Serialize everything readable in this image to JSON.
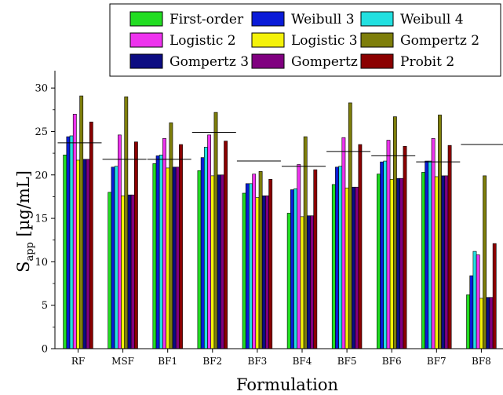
{
  "chart_data": {
    "type": "bar",
    "xlabel": "Formulation",
    "ylabel_main": "S",
    "ylabel_sub": "app",
    "ylabel_rest": " [µg/mL]",
    "ylim": [
      0,
      32
    ],
    "yticks": [
      0,
      5,
      10,
      15,
      20,
      25,
      30
    ],
    "legend_position": "top-right",
    "categories": [
      "RF",
      "MSF",
      "BF1",
      "BF2",
      "BF3",
      "BF4",
      "BF5",
      "BF6",
      "BF7",
      "BF8"
    ],
    "series": [
      {
        "name": "First-order",
        "color": "#22dd22",
        "values": [
          22.3,
          18.0,
          21.3,
          20.5,
          17.9,
          15.6,
          18.9,
          20.1,
          20.3,
          6.2
        ]
      },
      {
        "name": "Weibull 3",
        "color": "#0a1bd8",
        "values": [
          24.4,
          20.9,
          22.2,
          22.0,
          19.0,
          18.3,
          20.9,
          21.5,
          21.6,
          8.4
        ]
      },
      {
        "name": "Weibull 4",
        "color": "#22e0e0",
        "values": [
          24.5,
          21.0,
          22.3,
          23.2,
          19.0,
          18.4,
          21.0,
          21.6,
          21.6,
          11.2
        ]
      },
      {
        "name": "Logistic 2",
        "color": "#ee33ee",
        "values": [
          27.0,
          24.6,
          24.2,
          24.6,
          20.1,
          21.2,
          24.3,
          24.0,
          24.2,
          10.8
        ]
      },
      {
        "name": "Logistic 3",
        "color": "#f4f20a",
        "values": [
          21.7,
          17.6,
          20.8,
          19.9,
          17.4,
          15.2,
          18.5,
          19.5,
          19.8,
          5.8
        ]
      },
      {
        "name": "Gompertz 2",
        "color": "#7e7e0a",
        "values": [
          29.1,
          29.0,
          26.0,
          27.2,
          20.4,
          24.4,
          28.3,
          26.7,
          26.9,
          19.9
        ]
      },
      {
        "name": "Gompertz 3",
        "color": "#0c0c82",
        "values": [
          21.8,
          17.7,
          20.9,
          20.0,
          17.6,
          15.3,
          18.6,
          19.6,
          19.9,
          5.9
        ]
      },
      {
        "name": "Gompertz 4",
        "color": "#800080",
        "values": [
          21.8,
          17.7,
          20.9,
          20.0,
          17.6,
          15.3,
          18.6,
          19.6,
          19.9,
          5.9
        ]
      },
      {
        "name": "Probit 2",
        "color": "#8b0000",
        "values": [
          26.1,
          23.8,
          23.5,
          23.9,
          19.5,
          20.6,
          23.5,
          23.3,
          23.4,
          12.1
        ]
      }
    ],
    "reference_lines": [
      23.7,
      21.8,
      21.8,
      24.9,
      21.6,
      21.0,
      22.7,
      22.2,
      21.5,
      23.5
    ]
  }
}
